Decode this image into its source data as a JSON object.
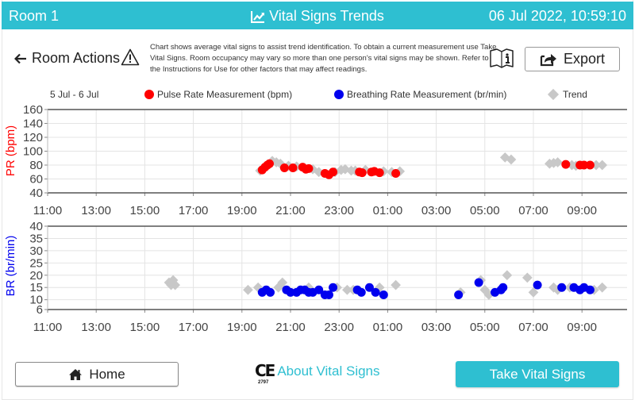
{
  "header": {
    "room": "Room 1",
    "title": "Vital Signs Trends",
    "title_icon": "line-chart-icon",
    "datetime": "06 Jul 2022, 10:59:10",
    "background": "#2ebfd1"
  },
  "toolbar": {
    "back_label": "Room Actions",
    "back_icon": "arrow-left-icon",
    "warning_icon": "warning-triangle-icon",
    "notice": "Chart shows average vital signs to assist trend identification. To obtain a current measurement use Take Vital Signs. Room occupancy may vary so more than one person's vital signs may be shown. Refer to the Instructions for Use for other factors that may affect readings.",
    "manual_icon": "instructions-manual-icon",
    "export_label": "Export",
    "export_icon": "share-export-icon"
  },
  "legend": {
    "date_range": "5 Jul - 6 Jul",
    "pulse": "Pulse Rate Measurement (bpm)",
    "breathing": "Breathing Rate Measurement (br/min)",
    "trend": "Trend"
  },
  "colors": {
    "pulse": "#ff0000",
    "breathing": "#0000ee",
    "trend": "#c8c8c8",
    "accent": "#2ebfd1"
  },
  "chart_data": [
    {
      "type": "scatter",
      "title": "Pulse Rate",
      "ylabel": "PR (bpm)",
      "xlabel": "",
      "ylim": [
        40,
        160
      ],
      "yticks": [
        40,
        60,
        80,
        100,
        120,
        140,
        160
      ],
      "xticks": [
        "11:00",
        "13:00",
        "15:00",
        "17:00",
        "19:00",
        "21:00",
        "23:00",
        "01:00",
        "03:00",
        "05:00",
        "07:00",
        "09:00"
      ],
      "grid": true,
      "series": [
        {
          "name": "Pulse Rate Measurement (bpm)",
          "marker": "circle",
          "color": "#ff0000",
          "points": [
            [
              "19:50",
              73
            ],
            [
              "19:57",
              77
            ],
            [
              "20:03",
              80
            ],
            [
              "20:08",
              82
            ],
            [
              "20:45",
              76
            ],
            [
              "21:06",
              76
            ],
            [
              "21:30",
              77
            ],
            [
              "21:38",
              74
            ],
            [
              "21:45",
              75
            ],
            [
              "22:25",
              68
            ],
            [
              "22:35",
              66
            ],
            [
              "22:45",
              70
            ],
            [
              "23:50",
              70
            ],
            [
              "23:57",
              69
            ],
            [
              "00:20",
              70
            ],
            [
              "00:27",
              71
            ],
            [
              "00:40",
              69
            ],
            [
              "01:20",
              68
            ],
            [
              "08:20",
              81
            ],
            [
              "08:55",
              80
            ],
            [
              "09:05",
              80
            ],
            [
              "09:20",
              80
            ]
          ]
        },
        {
          "name": "Trend",
          "marker": "diamond",
          "color": "#c8c8c8",
          "points": [
            [
              "19:45",
              72
            ],
            [
              "20:15",
              86
            ],
            [
              "20:25",
              84
            ],
            [
              "20:35",
              82
            ],
            [
              "20:55",
              79
            ],
            [
              "21:15",
              78
            ],
            [
              "21:55",
              74
            ],
            [
              "22:10",
              70
            ],
            [
              "22:50",
              70
            ],
            [
              "23:05",
              73
            ],
            [
              "23:15",
              74
            ],
            [
              "23:30",
              72
            ],
            [
              "23:40",
              72
            ],
            [
              "00:05",
              73
            ],
            [
              "00:50",
              71
            ],
            [
              "01:10",
              70
            ],
            [
              "01:30",
              71
            ],
            [
              "05:50",
              91
            ],
            [
              "06:05",
              88
            ],
            [
              "07:40",
              82
            ],
            [
              "07:50",
              83
            ],
            [
              "08:00",
              84
            ],
            [
              "08:35",
              80
            ],
            [
              "08:45",
              79
            ],
            [
              "09:35",
              80
            ],
            [
              "09:50",
              80
            ]
          ]
        }
      ]
    },
    {
      "type": "scatter",
      "title": "Breathing Rate",
      "ylabel": "BR (br/min)",
      "xlabel": "",
      "ylim": [
        6,
        40
      ],
      "yticks": [
        6,
        10,
        15,
        20,
        25,
        30,
        35,
        40
      ],
      "xticks": [
        "11:00",
        "13:00",
        "15:00",
        "17:00",
        "19:00",
        "21:00",
        "23:00",
        "01:00",
        "03:00",
        "05:00",
        "07:00",
        "09:00"
      ],
      "grid": true,
      "series": [
        {
          "name": "Breathing Rate Measurement (br/min)",
          "marker": "circle",
          "color": "#0000ee",
          "points": [
            [
              "19:50",
              13
            ],
            [
              "20:00",
              14
            ],
            [
              "20:10",
              13
            ],
            [
              "20:50",
              14
            ],
            [
              "21:00",
              13
            ],
            [
              "21:15",
              13
            ],
            [
              "21:25",
              14
            ],
            [
              "21:35",
              14
            ],
            [
              "21:45",
              13
            ],
            [
              "21:55",
              13
            ],
            [
              "22:10",
              14
            ],
            [
              "22:25",
              12
            ],
            [
              "22:35",
              12
            ],
            [
              "22:45",
              15
            ],
            [
              "23:45",
              14
            ],
            [
              "23:55",
              13
            ],
            [
              "00:15",
              15
            ],
            [
              "00:30",
              13
            ],
            [
              "00:50",
              12
            ],
            [
              "03:55",
              12
            ],
            [
              "04:45",
              17
            ],
            [
              "05:25",
              13
            ],
            [
              "05:40",
              14
            ],
            [
              "05:45",
              15
            ],
            [
              "07:10",
              16
            ],
            [
              "08:10",
              15
            ],
            [
              "08:40",
              15
            ],
            [
              "08:55",
              14
            ],
            [
              "09:05",
              15
            ],
            [
              "09:20",
              14
            ]
          ]
        },
        {
          "name": "Trend",
          "marker": "diamond",
          "color": "#c8c8c8",
          "points": [
            [
              "16:00",
              17
            ],
            [
              "16:05",
              16
            ],
            [
              "16:10",
              18
            ],
            [
              "16:15",
              16
            ],
            [
              "19:15",
              14
            ],
            [
              "19:40",
              15
            ],
            [
              "20:30",
              15
            ],
            [
              "20:40",
              17
            ],
            [
              "21:45",
              15
            ],
            [
              "22:55",
              15
            ],
            [
              "23:20",
              14
            ],
            [
              "23:35",
              14
            ],
            [
              "00:40",
              15
            ],
            [
              "01:20",
              16
            ],
            [
              "04:00",
              13
            ],
            [
              "04:50",
              18
            ],
            [
              "05:00",
              14
            ],
            [
              "05:10",
              12
            ],
            [
              "05:55",
              20
            ],
            [
              "06:45",
              19
            ],
            [
              "07:00",
              13
            ],
            [
              "07:50",
              15
            ],
            [
              "08:00",
              14
            ],
            [
              "08:30",
              15
            ],
            [
              "09:30",
              14
            ],
            [
              "09:50",
              15
            ]
          ]
        }
      ]
    }
  ],
  "footer": {
    "home_label": "Home",
    "home_icon": "home-icon",
    "ce_mark": "CE",
    "ce_number": "2797",
    "about_label": "About Vital Signs",
    "take_label": "Take Vital Signs"
  }
}
